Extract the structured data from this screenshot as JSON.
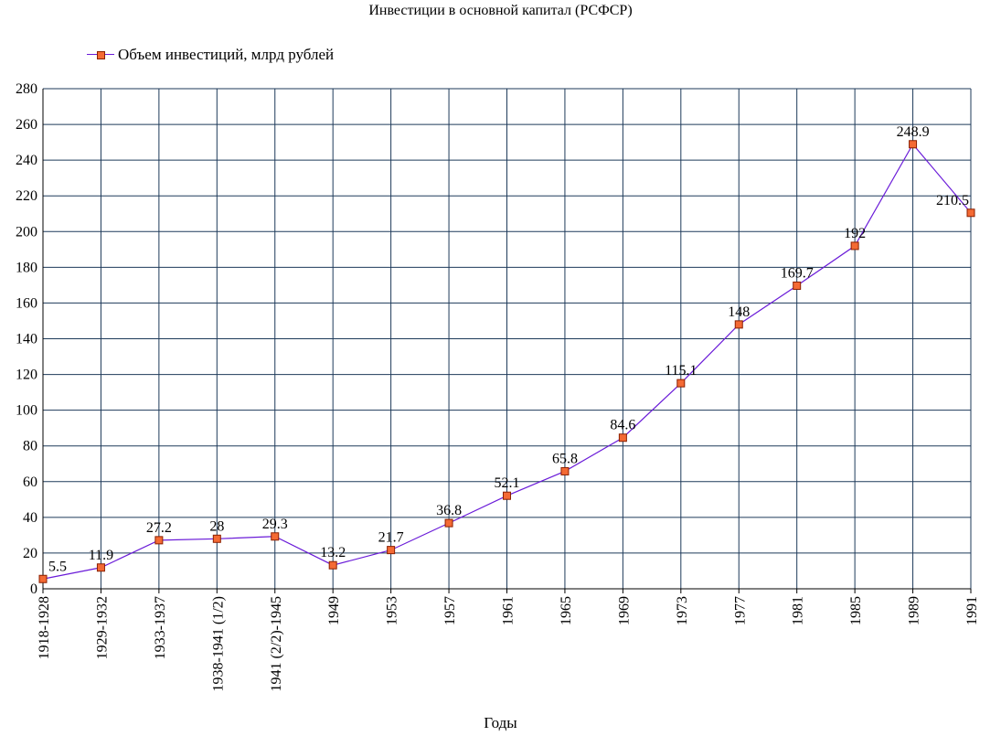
{
  "chart_data": {
    "type": "line",
    "title": "Инвестиции в основной капитал (РСФСР)",
    "xlabel": "Годы",
    "ylabel": "",
    "ylim": [
      0,
      280
    ],
    "yticks": [
      0,
      20,
      40,
      60,
      80,
      100,
      120,
      140,
      160,
      180,
      200,
      220,
      240,
      260,
      280
    ],
    "grid": true,
    "legend_position": "top-left",
    "categories": [
      "1918-1928",
      "1929-1932",
      "1933-1937",
      "1938-1941 (1/2)",
      "1941 (2/2)-1945",
      "1949",
      "1953",
      "1957",
      "1961",
      "1965",
      "1969",
      "1973",
      "1977",
      "1981",
      "1985",
      "1989",
      "1991"
    ],
    "series": [
      {
        "name": "Объем инвестиций, млрд рублей",
        "values": [
          5.5,
          11.9,
          27.2,
          28,
          29.3,
          13.2,
          21.7,
          36.8,
          52.1,
          65.8,
          84.6,
          115.1,
          148,
          169.7,
          192,
          248.9,
          210.5
        ],
        "labels": [
          "5.5",
          "11.9",
          "27.2",
          "28",
          "29.3",
          "13.2",
          "21.7",
          "36.8",
          "52.1",
          "65.8",
          "84.6",
          "115.1",
          "148",
          "169.7",
          "192",
          "248.9",
          "210.5"
        ],
        "line_color": "#6a1bd8",
        "marker_color": "#f46a34",
        "marker_border": "#8a1f00"
      }
    ]
  }
}
